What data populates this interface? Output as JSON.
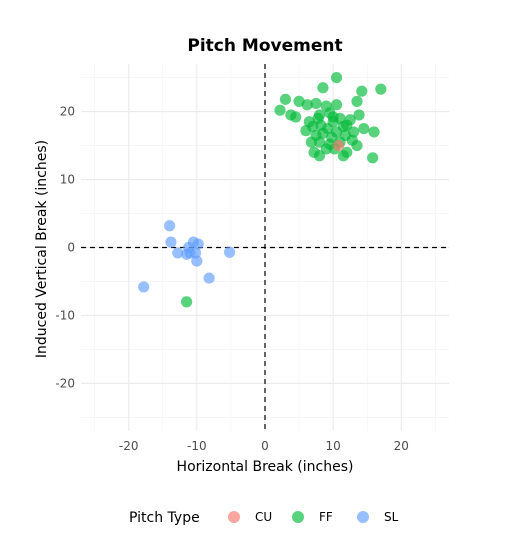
{
  "chart_data": {
    "type": "scatter",
    "title": "Pitch Movement",
    "xlabel": "Horizontal Break (inches)",
    "ylabel": "Induced Vertical Break (inches)",
    "xlim": [
      -27,
      27
    ],
    "ylim": [
      -27,
      27
    ],
    "x_ticks": [
      -20,
      -10,
      0,
      10,
      20
    ],
    "y_ticks": [
      -20,
      -10,
      0,
      10,
      20
    ],
    "grid": true,
    "reference_lines": {
      "x": 0,
      "y": 0,
      "style": "dashed"
    },
    "legend": {
      "title": "Pitch Type",
      "position": "bottom"
    },
    "series": [
      {
        "name": "CU",
        "color": "#F8766D",
        "points": [
          [
            10.8,
            15.0
          ]
        ]
      },
      {
        "name": "FF",
        "color": "#00BA38",
        "points": [
          [
            10.5,
            25.0
          ],
          [
            8.5,
            23.5
          ],
          [
            17.0,
            23.3
          ],
          [
            13.5,
            21.5
          ],
          [
            14.2,
            23.0
          ],
          [
            5.0,
            21.5
          ],
          [
            6.2,
            21.0
          ],
          [
            7.5,
            21.2
          ],
          [
            9.0,
            20.8
          ],
          [
            10.5,
            21.0
          ],
          [
            2.2,
            20.2
          ],
          [
            3.8,
            19.5
          ],
          [
            4.5,
            19.2
          ],
          [
            8.0,
            19.5
          ],
          [
            9.5,
            19.8
          ],
          [
            11.0,
            19.0
          ],
          [
            12.5,
            18.8
          ],
          [
            13.8,
            19.5
          ],
          [
            3.0,
            21.8
          ],
          [
            6.5,
            18.5
          ],
          [
            7.0,
            17.8
          ],
          [
            8.2,
            18.0
          ],
          [
            9.2,
            17.5
          ],
          [
            10.0,
            18.5
          ],
          [
            11.5,
            17.8
          ],
          [
            12.0,
            18.0
          ],
          [
            6.0,
            17.2
          ],
          [
            7.5,
            16.5
          ],
          [
            8.5,
            16.8
          ],
          [
            9.8,
            16.2
          ],
          [
            10.5,
            17.0
          ],
          [
            11.8,
            16.5
          ],
          [
            13.0,
            17.0
          ],
          [
            14.5,
            17.5
          ],
          [
            16.0,
            17.0
          ],
          [
            6.8,
            15.5
          ],
          [
            8.0,
            15.5
          ],
          [
            9.5,
            15.2
          ],
          [
            11.0,
            15.5
          ],
          [
            12.8,
            15.8
          ],
          [
            7.2,
            14.0
          ],
          [
            9.0,
            14.5
          ],
          [
            10.2,
            14.5
          ],
          [
            12.0,
            14.0
          ],
          [
            13.5,
            15.0
          ],
          [
            8.0,
            13.5
          ],
          [
            11.5,
            13.5
          ],
          [
            15.8,
            13.2
          ],
          [
            7.8,
            19.0
          ],
          [
            10.0,
            19.2
          ],
          [
            -11.5,
            -8.0
          ]
        ]
      },
      {
        "name": "SL",
        "color": "#619CFF",
        "points": [
          [
            -14.0,
            3.2
          ],
          [
            -13.8,
            0.8
          ],
          [
            -12.8,
            -0.8
          ],
          [
            -11.2,
            0.0
          ],
          [
            -11.0,
            -0.8
          ],
          [
            -10.5,
            0.8
          ],
          [
            -10.2,
            -0.8
          ],
          [
            -9.8,
            0.5
          ],
          [
            -10.0,
            -2.0
          ],
          [
            -8.2,
            -4.5
          ],
          [
            -5.2,
            -0.7
          ],
          [
            -17.8,
            -5.8
          ],
          [
            -11.5,
            -1.0
          ]
        ]
      }
    ]
  }
}
